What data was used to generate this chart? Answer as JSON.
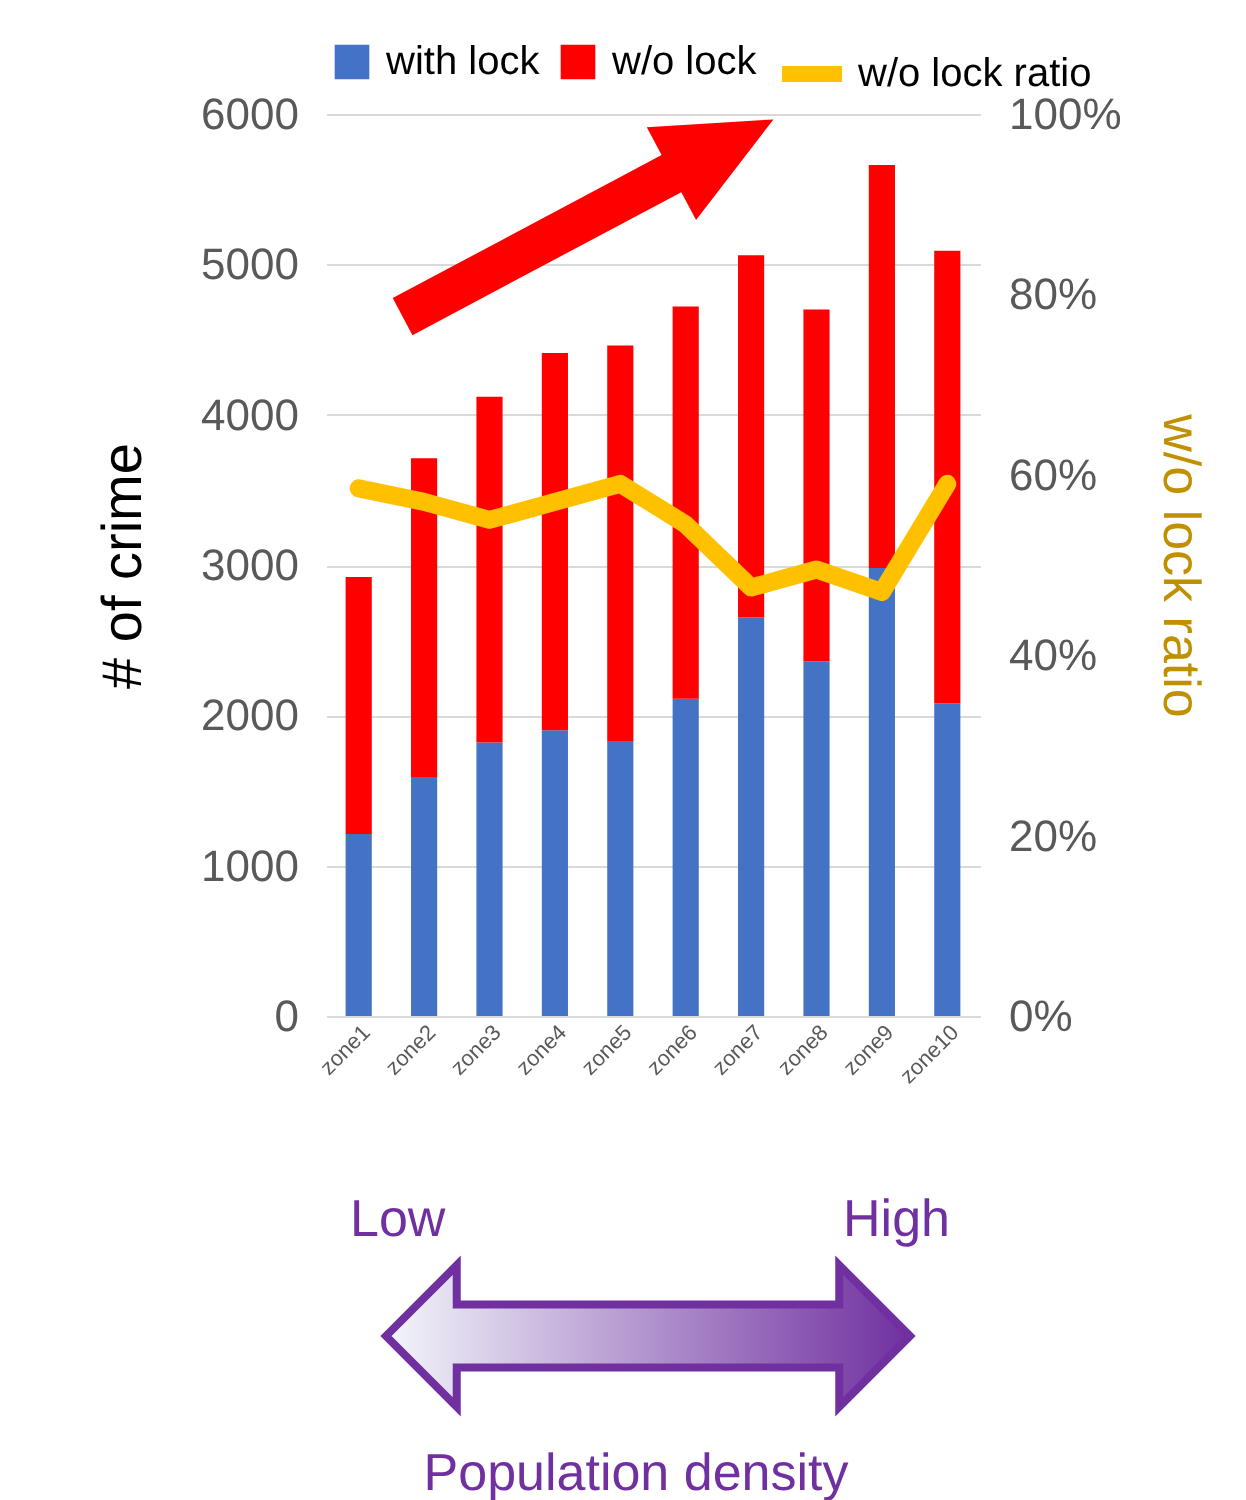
{
  "chart_data": {
    "type": "bar",
    "stacked": true,
    "ylabel": "# of crime",
    "y2label": "w/o lock ratio",
    "categories": [
      "zone1",
      "zone2",
      "zone3",
      "zone4",
      "zone5",
      "zone6",
      "zone7",
      "zone8",
      "zone9",
      "zone10"
    ],
    "series": [
      {
        "name": "with lock",
        "color": "#4472c4",
        "values": [
          1210,
          1590,
          1820,
          1900,
          1830,
          2110,
          2650,
          2360,
          2980,
          2080
        ]
      },
      {
        "name": "w/o lock",
        "color": "#ff0000",
        "values": [
          1710,
          2120,
          2300,
          2510,
          2630,
          2610,
          2410,
          2340,
          2680,
          3010
        ]
      },
      {
        "name": "w/o lock ratio",
        "type": "line",
        "axis": "y2",
        "color": "#ffc000",
        "values": [
          58.5,
          57,
          55,
          57,
          59,
          54.5,
          47.5,
          49.5,
          47,
          59
        ]
      }
    ],
    "ylim": [
      0,
      6000
    ],
    "yticks": [
      0,
      1000,
      2000,
      3000,
      4000,
      5000,
      6000
    ],
    "y2lim": [
      0,
      100
    ],
    "y2ticks": [
      {
        "value": 0,
        "label": "0%"
      },
      {
        "value": 20,
        "label": "20%"
      },
      {
        "value": 40,
        "label": "40%"
      },
      {
        "value": 60,
        "label": "60%"
      },
      {
        "value": 80,
        "label": "80%"
      },
      {
        "value": 100,
        "label": "100%"
      }
    ],
    "grid": "y",
    "legend": "top",
    "annotations": [
      "Low",
      "High",
      "Population density"
    ]
  }
}
